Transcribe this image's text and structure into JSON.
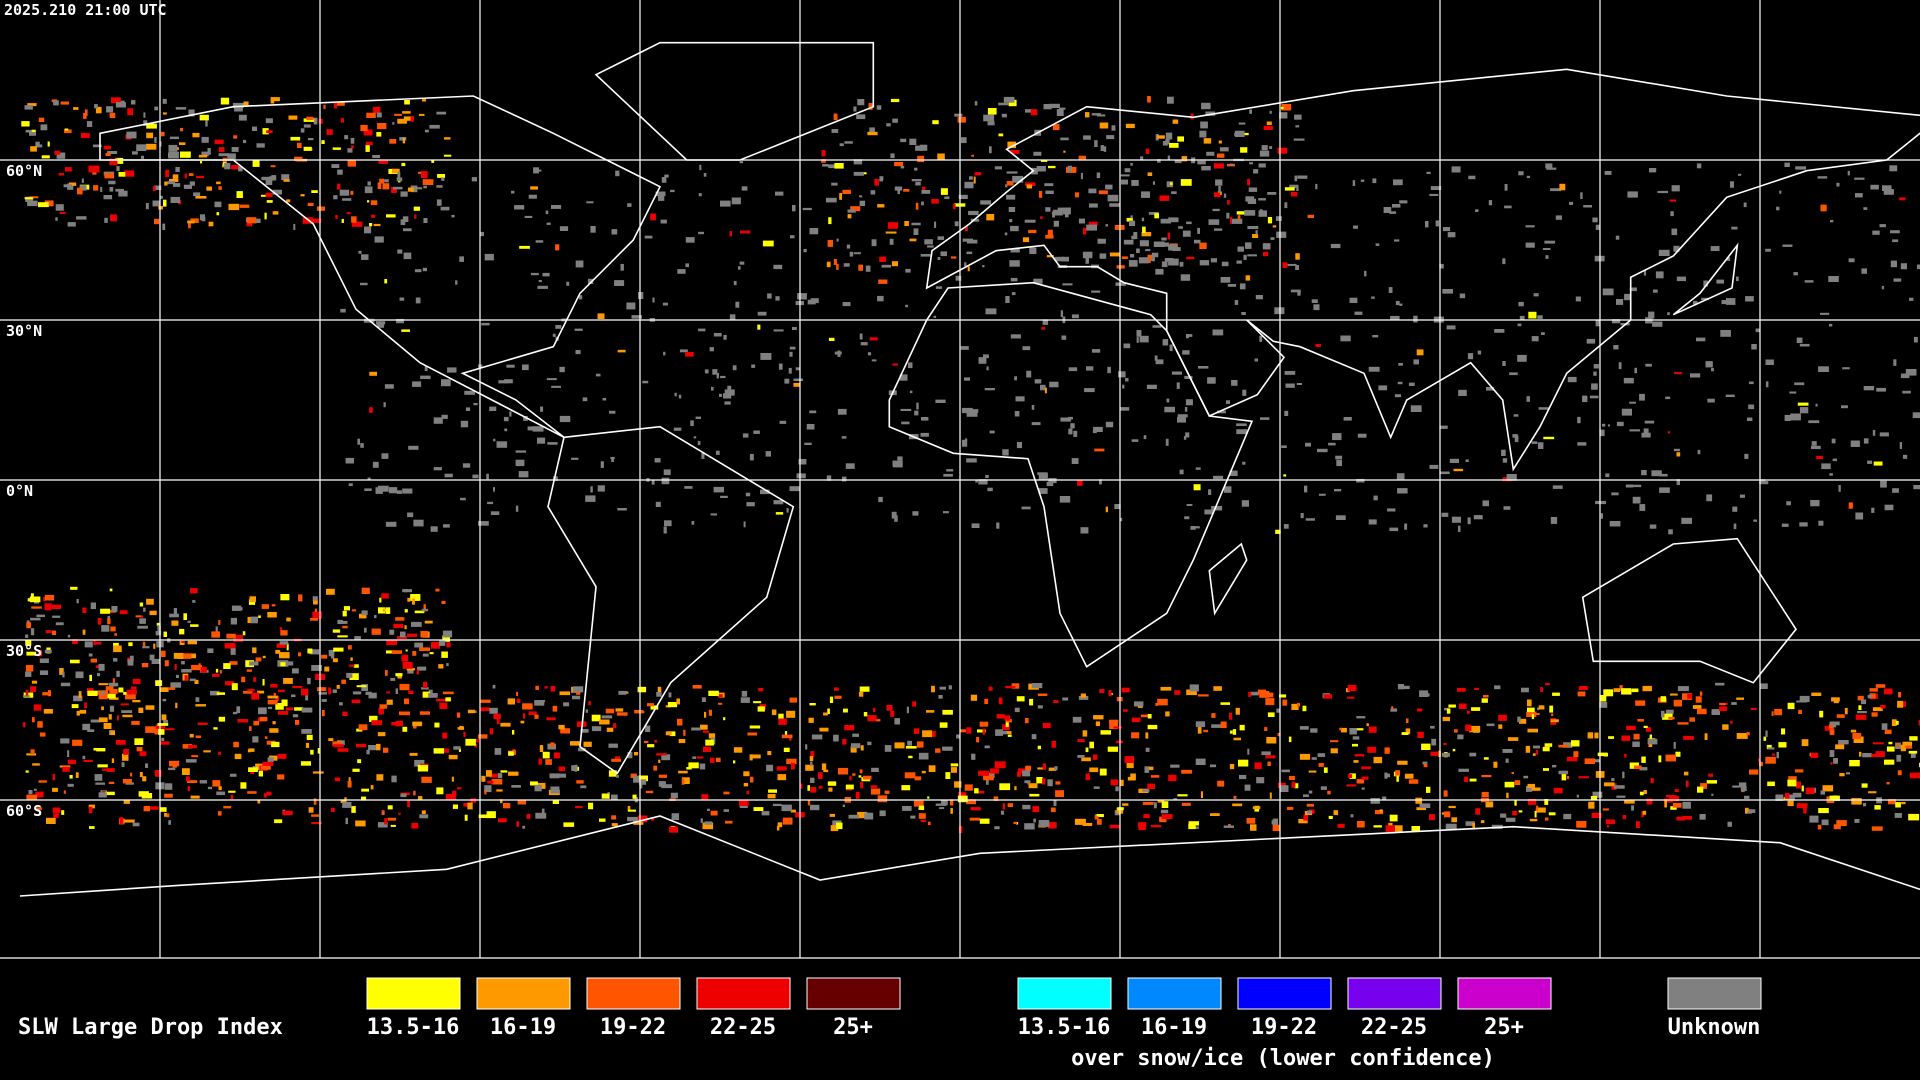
{
  "timestamp": "2025.210 21:00 UTC",
  "latitude_labels": [
    "60°N",
    "30°N",
    "0°N",
    "30°S",
    "60°S"
  ],
  "legend": {
    "title": "SLW Large Drop Index",
    "items": [
      {
        "label": "13.5-16",
        "color": "#ffff00"
      },
      {
        "label": "16-19",
        "color": "#ff9900"
      },
      {
        "label": "19-22",
        "color": "#ff5500"
      },
      {
        "label": "22-25",
        "color": "#ee0000"
      },
      {
        "label": "25+",
        "color": "#660000"
      }
    ],
    "snow_items": [
      {
        "label": "13.5-16",
        "color": "#00ffff"
      },
      {
        "label": "16-19",
        "color": "#0088ff"
      },
      {
        "label": "19-22",
        "color": "#0000ff"
      },
      {
        "label": "22-25",
        "color": "#7700ee"
      },
      {
        "label": "25+",
        "color": "#cc00cc"
      }
    ],
    "snow_caption": "over snow/ice (lower confidence)",
    "unknown": {
      "label": "Unknown",
      "color": "#808080"
    }
  }
}
